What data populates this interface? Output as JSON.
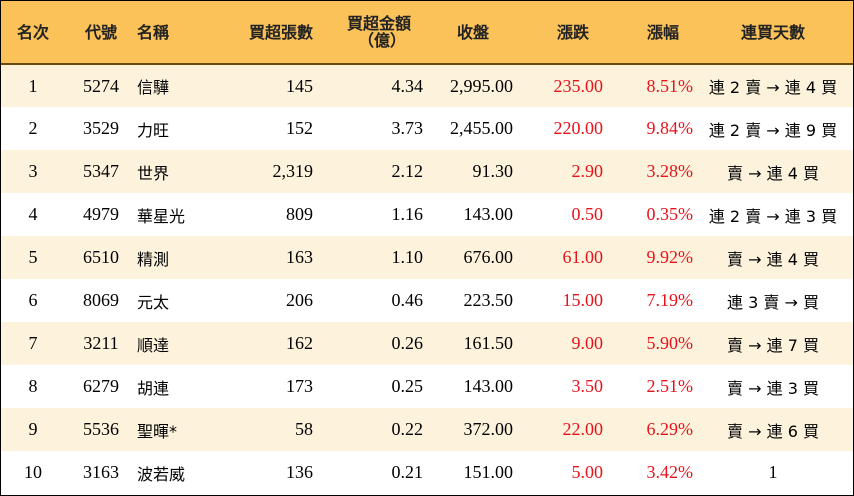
{
  "headers": {
    "rank": "名次",
    "code": "代號",
    "name": "名稱",
    "net_buy_lots": "買超張數",
    "net_buy_amount": "買超金額",
    "net_buy_amount_unit": "（億）",
    "close": "收盤",
    "change": "漲跌",
    "change_pct": "漲幅",
    "consecutive": "連買天數"
  },
  "rows": [
    {
      "rank": "1",
      "code": "5274",
      "name": "信驊",
      "lots": "145",
      "amount": "4.34",
      "close": "2,995.00",
      "change": "235.00",
      "pct": "8.51%",
      "streak": "連 2 賣 → 連 4 買"
    },
    {
      "rank": "2",
      "code": "3529",
      "name": "力旺",
      "lots": "152",
      "amount": "3.73",
      "close": "2,455.00",
      "change": "220.00",
      "pct": "9.84%",
      "streak": "連 2 賣 → 連 9 買"
    },
    {
      "rank": "3",
      "code": "5347",
      "name": "世界",
      "lots": "2,319",
      "amount": "2.12",
      "close": "91.30",
      "change": "2.90",
      "pct": "3.28%",
      "streak": "賣 → 連 4 買"
    },
    {
      "rank": "4",
      "code": "4979",
      "name": "華星光",
      "lots": "809",
      "amount": "1.16",
      "close": "143.00",
      "change": "0.50",
      "pct": "0.35%",
      "streak": "連 2 賣 → 連 3 買"
    },
    {
      "rank": "5",
      "code": "6510",
      "name": "精測",
      "lots": "163",
      "amount": "1.10",
      "close": "676.00",
      "change": "61.00",
      "pct": "9.92%",
      "streak": "賣 → 連 4 買"
    },
    {
      "rank": "6",
      "code": "8069",
      "name": "元太",
      "lots": "206",
      "amount": "0.46",
      "close": "223.50",
      "change": "15.00",
      "pct": "7.19%",
      "streak": "連 3 賣 → 買"
    },
    {
      "rank": "7",
      "code": "3211",
      "name": "順達",
      "lots": "162",
      "amount": "0.26",
      "close": "161.50",
      "change": "9.00",
      "pct": "5.90%",
      "streak": "賣 → 連 7 買"
    },
    {
      "rank": "8",
      "code": "6279",
      "name": "胡連",
      "lots": "173",
      "amount": "0.25",
      "close": "143.00",
      "change": "3.50",
      "pct": "2.51%",
      "streak": "賣 → 連 3 買"
    },
    {
      "rank": "9",
      "code": "5536",
      "name": "聖暉*",
      "lots": "58",
      "amount": "0.22",
      "close": "372.00",
      "change": "22.00",
      "pct": "6.29%",
      "streak": "賣 → 連 6 買"
    },
    {
      "rank": "10",
      "code": "3163",
      "name": "波若威",
      "lots": "136",
      "amount": "0.21",
      "close": "151.00",
      "change": "5.00",
      "pct": "3.42%",
      "streak": "1"
    }
  ],
  "colors": {
    "header_bg": "#fbc25a",
    "odd_row_bg": "#fdf3dd",
    "up_red": "#e8121b"
  }
}
